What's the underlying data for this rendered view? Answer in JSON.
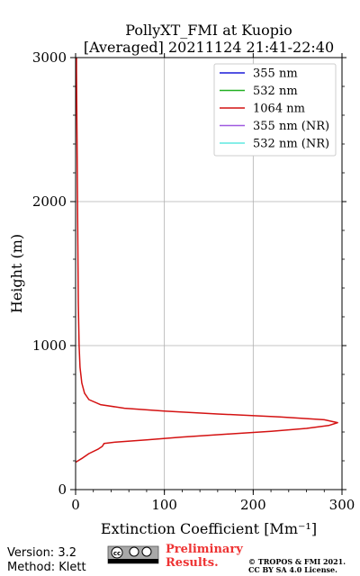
{
  "chart_data": {
    "type": "line",
    "title": "PollyXT_FMI at Kuopio",
    "subtitle": "[Averaged] 20211124 21:41-22:40",
    "xlabel": "Extinction Coefficient [Mm⁻¹]",
    "ylabel": "Height (m)",
    "xlim": [
      0,
      300
    ],
    "ylim": [
      0,
      3000
    ],
    "x_ticks": [
      "0",
      "100",
      "200",
      "300"
    ],
    "y_ticks": [
      "0",
      "1000",
      "2000",
      "3000"
    ],
    "grid": true,
    "legend_position": "top-right",
    "legend": [
      {
        "name": "355 nm",
        "color": "#1a1ad8"
      },
      {
        "name": "532 nm",
        "color": "#22b022"
      },
      {
        "name": "1064 nm",
        "color": "#d41212"
      },
      {
        "name": "355 nm (NR)",
        "color": "#a05ae0"
      },
      {
        "name": "532 nm (NR)",
        "color": "#5ee8e0"
      }
    ],
    "series": [
      {
        "name": "1064 nm",
        "color": "#d41212",
        "points": [
          [
            0,
            190
          ],
          [
            8,
            220
          ],
          [
            15,
            250
          ],
          [
            25,
            280
          ],
          [
            30,
            300
          ],
          [
            32,
            320
          ],
          [
            45,
            330
          ],
          [
            80,
            345
          ],
          [
            120,
            365
          ],
          [
            170,
            385
          ],
          [
            220,
            405
          ],
          [
            260,
            425
          ],
          [
            285,
            445
          ],
          [
            295,
            465
          ],
          [
            280,
            485
          ],
          [
            230,
            505
          ],
          [
            160,
            525
          ],
          [
            100,
            545
          ],
          [
            55,
            565
          ],
          [
            28,
            590
          ],
          [
            15,
            625
          ],
          [
            10,
            670
          ],
          [
            7,
            740
          ],
          [
            5,
            850
          ],
          [
            4,
            1000
          ],
          [
            3,
            1300
          ],
          [
            2.5,
            1700
          ],
          [
            2,
            2100
          ],
          [
            1.5,
            2500
          ],
          [
            1,
            2900
          ],
          [
            1,
            3000
          ]
        ]
      }
    ]
  },
  "footer": {
    "version": "Version: 3.2",
    "method": "Method: Klett",
    "license_badge": "cc-by-sa-icon",
    "preliminary": "Preliminary Results.",
    "copyright_line1": "© TROPOS & FMI 2021.",
    "copyright_line2": "CC BY SA 4.0 License."
  }
}
